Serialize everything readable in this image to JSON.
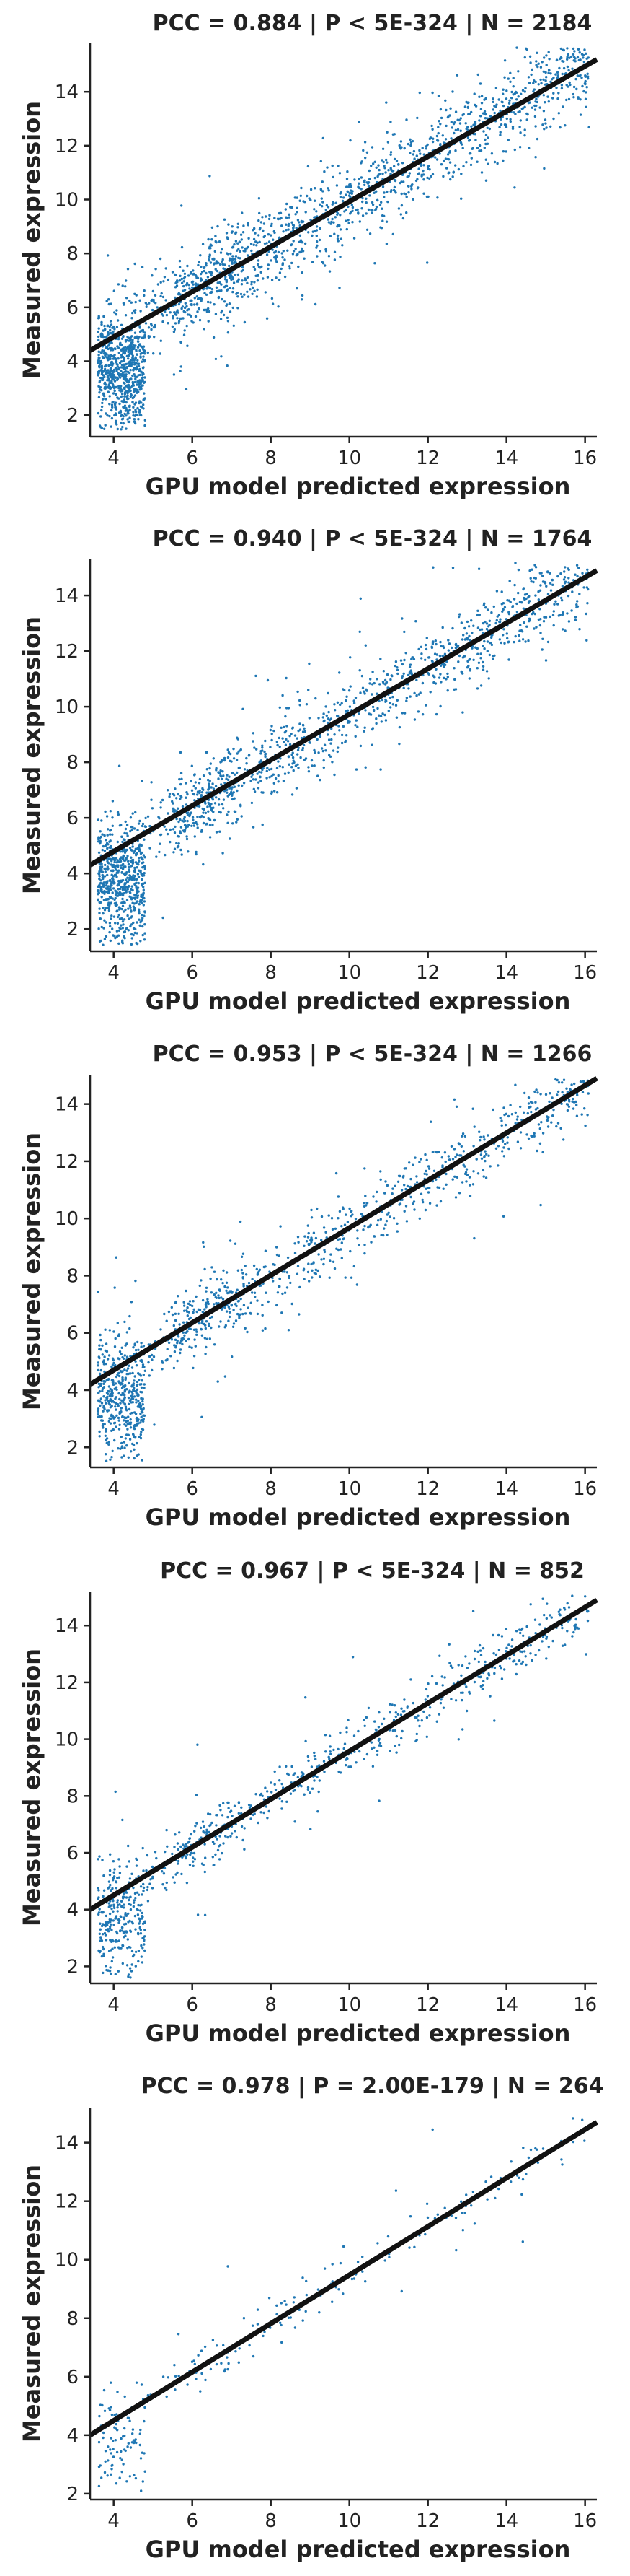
{
  "chart_data": [
    {
      "type": "scatter",
      "title": "PCC =  0.884 | P <  5E-324 | N = 2184",
      "xlabel": "GPU model predicted expression",
      "ylabel": "Measured expression",
      "xlim": [
        3.4,
        16.3
      ],
      "ylim": [
        1.2,
        15.8
      ],
      "xticks": [
        "4",
        "6",
        "8",
        "10",
        "12",
        "14",
        "16"
      ],
      "yticks": [
        "2",
        "4",
        "6",
        "8",
        "10",
        "12",
        "14"
      ],
      "fit_line": {
        "x": [
          3.4,
          16.3
        ],
        "y": [
          4.4,
          15.2
        ]
      },
      "n_points": 2184,
      "grid": false,
      "legend": "none"
    },
    {
      "type": "scatter",
      "title": "PCC =  0.940 | P <  5E-324 | N = 1764",
      "xlabel": "GPU model predicted expression",
      "ylabel": "Measured expression",
      "xlim": [
        3.4,
        16.3
      ],
      "ylim": [
        1.2,
        15.3
      ],
      "xticks": [
        "4",
        "6",
        "8",
        "10",
        "12",
        "14",
        "16"
      ],
      "yticks": [
        "2",
        "4",
        "6",
        "8",
        "10",
        "12",
        "14"
      ],
      "fit_line": {
        "x": [
          3.4,
          16.3
        ],
        "y": [
          4.3,
          14.9
        ]
      },
      "n_points": 1764,
      "grid": false,
      "legend": "none"
    },
    {
      "type": "scatter",
      "title": "PCC =  0.953 | P <  5E-324 | N = 1266",
      "xlabel": "GPU model predicted expression",
      "ylabel": "Measured expression",
      "xlim": [
        3.4,
        16.3
      ],
      "ylim": [
        1.3,
        15.0
      ],
      "xticks": [
        "4",
        "6",
        "8",
        "10",
        "12",
        "14",
        "16"
      ],
      "yticks": [
        "2",
        "4",
        "6",
        "8",
        "10",
        "12",
        "14"
      ],
      "fit_line": {
        "x": [
          3.4,
          16.3
        ],
        "y": [
          4.2,
          14.9
        ]
      },
      "n_points": 1266,
      "grid": false,
      "legend": "none"
    },
    {
      "type": "scatter",
      "title": "PCC =  0.967 | P <  5E-324 | N = 852",
      "xlabel": "GPU model predicted expression",
      "ylabel": "Measured expression",
      "xlim": [
        3.4,
        16.3
      ],
      "ylim": [
        1.4,
        15.2
      ],
      "xticks": [
        "4",
        "6",
        "8",
        "10",
        "12",
        "14",
        "16"
      ],
      "yticks": [
        "2",
        "4",
        "6",
        "8",
        "10",
        "12",
        "14"
      ],
      "fit_line": {
        "x": [
          3.4,
          16.3
        ],
        "y": [
          4.0,
          14.9
        ]
      },
      "n_points": 852,
      "grid": false,
      "legend": "none"
    },
    {
      "type": "scatter",
      "title": "PCC =  0.978 | P =  2.00E-179 | N = 264",
      "xlabel": "GPU model predicted expression",
      "ylabel": "Measured expression",
      "xlim": [
        3.4,
        16.3
      ],
      "ylim": [
        1.8,
        15.2
      ],
      "xticks": [
        "4",
        "6",
        "8",
        "10",
        "12",
        "14",
        "16"
      ],
      "yticks": [
        "2",
        "4",
        "6",
        "8",
        "10",
        "12",
        "14"
      ],
      "fit_line": {
        "x": [
          3.4,
          16.3
        ],
        "y": [
          4.0,
          14.7
        ]
      },
      "n_points": 264,
      "grid": false,
      "legend": "none"
    }
  ],
  "colors": {
    "points": "#1f77b4",
    "fit_line": "#111111",
    "text": "#222222"
  }
}
